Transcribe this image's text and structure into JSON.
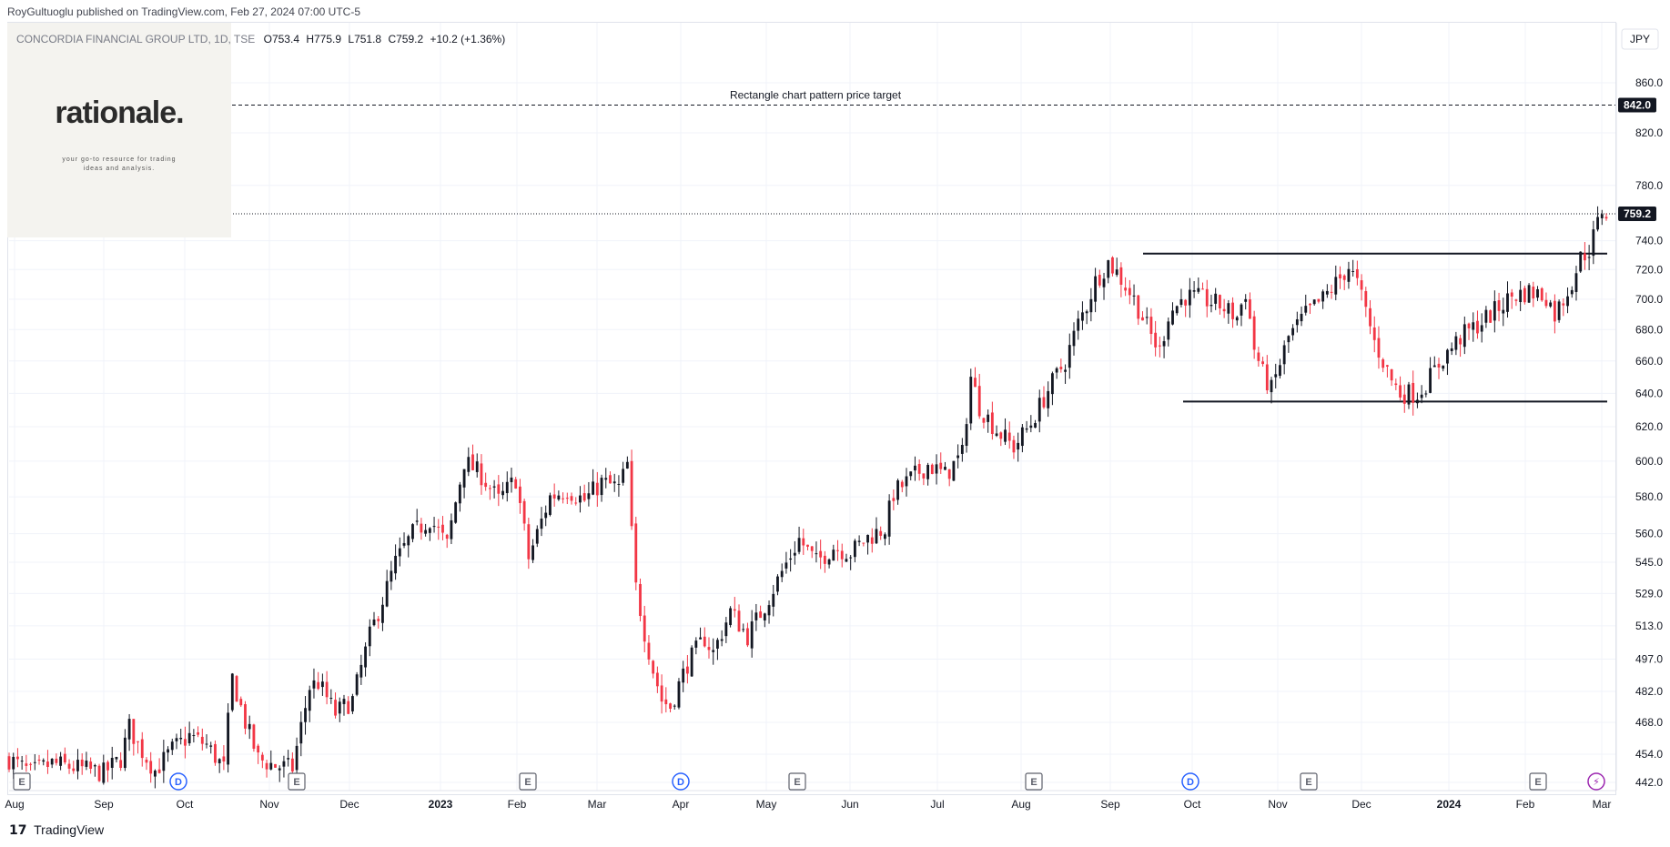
{
  "header": {
    "published_text": "RoyGultuoglu published on TradingView.com, Feb 27, 2024 07:00 UTC-5"
  },
  "legend": {
    "symbol": "CONCORDIA FINANCIAL GROUP LTD, 1D, TSE",
    "open": "O753.4",
    "high": "H775.9",
    "low": "L751.8",
    "close": "C759.2",
    "change": "+10.2 (+1.36%)"
  },
  "logo": {
    "text": "rationale.",
    "tagline_line1": "your go-to resource for trading",
    "tagline_line2": "ideas and analysis."
  },
  "currency_button": "JPY",
  "footer": {
    "brand": "TradingView"
  },
  "colors": {
    "up": "#131722",
    "down": "#f23645",
    "grid": "#f0f3fa",
    "label_bg": "#131722"
  },
  "chart_data": {
    "type": "candlestick",
    "title": "CONCORDIA FINANCIAL GROUP LTD, 1D, TSE",
    "y_axis": {
      "ticks": [
        "860.0",
        "820.0",
        "780.0",
        "740.0",
        "720.0",
        "700.0",
        "680.0",
        "660.0",
        "640.0",
        "620.0",
        "600.0",
        "580.0",
        "560.0",
        "545.0",
        "529.0",
        "513.0",
        "497.0",
        "482.0",
        "468.0",
        "454.0",
        "442.0"
      ],
      "range": [
        442,
        870
      ],
      "scale": "log"
    },
    "x_axis": {
      "ticks": [
        "Aug",
        "Sep",
        "Oct",
        "Nov",
        "Dec",
        "2023",
        "Feb",
        "Mar",
        "Apr",
        "May",
        "Jun",
        "Jul",
        "Aug",
        "Sep",
        "Oct",
        "Nov",
        "Dec",
        "2024",
        "Feb",
        "Mar"
      ],
      "bold_ticks": [
        "2023",
        "2024"
      ]
    },
    "price_labels": [
      {
        "value": 842.0,
        "text": "842.0"
      },
      {
        "value": 759.2,
        "text": "759.2"
      }
    ],
    "annotations": [
      {
        "kind": "dashed-hline",
        "value": 842.0,
        "label": "Rectangle chart pattern price target"
      },
      {
        "kind": "dotted-hline",
        "value": 759.2,
        "label": ""
      },
      {
        "kind": "hline-segment",
        "value": 731,
        "from": "Sep 2023",
        "to": "Feb 2024",
        "label": ""
      },
      {
        "kind": "hline-segment",
        "value": 635,
        "from": "Oct 2023",
        "to": "Feb 2024",
        "label": ""
      }
    ],
    "events": [
      {
        "type": "E",
        "month": "Aug"
      },
      {
        "type": "D",
        "month": "Sep"
      },
      {
        "type": "E",
        "month": "Nov"
      },
      {
        "type": "E",
        "month": "Feb"
      },
      {
        "type": "D",
        "month": "Mar"
      },
      {
        "type": "E",
        "month": "May"
      },
      {
        "type": "E",
        "month": "Aug"
      },
      {
        "type": "D",
        "month": "Sep"
      },
      {
        "type": "E",
        "month": "Nov"
      },
      {
        "type": "E",
        "month": "Feb"
      },
      {
        "type": "S",
        "month": "Feb"
      }
    ],
    "price_path": [
      [
        0,
        452
      ],
      [
        5,
        446
      ],
      [
        10,
        450
      ],
      [
        16,
        448
      ],
      [
        22,
        446
      ],
      [
        26,
        452
      ],
      [
        28,
        466
      ],
      [
        30,
        458
      ],
      [
        34,
        447
      ],
      [
        38,
        456
      ],
      [
        42,
        462
      ],
      [
        46,
        458
      ],
      [
        50,
        448
      ],
      [
        52,
        488
      ],
      [
        55,
        468
      ],
      [
        58,
        452
      ],
      [
        62,
        449
      ],
      [
        66,
        448
      ],
      [
        70,
        484
      ],
      [
        72,
        486
      ],
      [
        76,
        472
      ],
      [
        80,
        478
      ],
      [
        84,
        508
      ],
      [
        88,
        532
      ],
      [
        90,
        545
      ],
      [
        94,
        560
      ],
      [
        98,
        568
      ],
      [
        102,
        554
      ],
      [
        106,
        600
      ],
      [
        110,
        592
      ],
      [
        114,
        578
      ],
      [
        118,
        590
      ],
      [
        121,
        547
      ],
      [
        126,
        580
      ],
      [
        130,
        584
      ],
      [
        134,
        578
      ],
      [
        138,
        588
      ],
      [
        142,
        585
      ],
      [
        144,
        598
      ],
      [
        145,
        560
      ],
      [
        146,
        532
      ],
      [
        148,
        510
      ],
      [
        150,
        492
      ],
      [
        152,
        478
      ],
      [
        154,
        475
      ],
      [
        158,
        495
      ],
      [
        162,
        507
      ],
      [
        164,
        500
      ],
      [
        168,
        520
      ],
      [
        172,
        508
      ],
      [
        176,
        523
      ],
      [
        180,
        540
      ],
      [
        184,
        557
      ],
      [
        188,
        545
      ],
      [
        192,
        553
      ],
      [
        196,
        550
      ],
      [
        200,
        558
      ],
      [
        204,
        563
      ],
      [
        206,
        582
      ],
      [
        210,
        590
      ],
      [
        214,
        598
      ],
      [
        218,
        592
      ],
      [
        222,
        604
      ],
      [
        224,
        650
      ],
      [
        226,
        632
      ],
      [
        230,
        618
      ],
      [
        234,
        608
      ],
      [
        238,
        622
      ],
      [
        242,
        642
      ],
      [
        246,
        660
      ],
      [
        249,
        684
      ],
      [
        251,
        696
      ],
      [
        253,
        712
      ],
      [
        256,
        725
      ],
      [
        258,
        718
      ],
      [
        262,
        700
      ],
      [
        266,
        676
      ],
      [
        268,
        666
      ],
      [
        270,
        690
      ],
      [
        274,
        702
      ],
      [
        278,
        700
      ],
      [
        282,
        696
      ],
      [
        286,
        688
      ],
      [
        288,
        705
      ],
      [
        290,
        668
      ],
      [
        292,
        652
      ],
      [
        294,
        642
      ],
      [
        298,
        675
      ],
      [
        302,
        690
      ],
      [
        306,
        700
      ],
      [
        310,
        714
      ],
      [
        312,
        722
      ],
      [
        314,
        710
      ],
      [
        316,
        692
      ],
      [
        318,
        672
      ],
      [
        320,
        660
      ],
      [
        322,
        648
      ],
      [
        324,
        640
      ],
      [
        328,
        640
      ],
      [
        330,
        646
      ],
      [
        332,
        654
      ],
      [
        334,
        662
      ],
      [
        338,
        675
      ],
      [
        342,
        683
      ],
      [
        346,
        692
      ],
      [
        350,
        702
      ],
      [
        354,
        705
      ],
      [
        358,
        702
      ],
      [
        360,
        690
      ],
      [
        362,
        700
      ],
      [
        364,
        712
      ],
      [
        366,
        728
      ],
      [
        368,
        734
      ],
      [
        370,
        752
      ],
      [
        371,
        762
      ],
      [
        372,
        759
      ]
    ]
  }
}
